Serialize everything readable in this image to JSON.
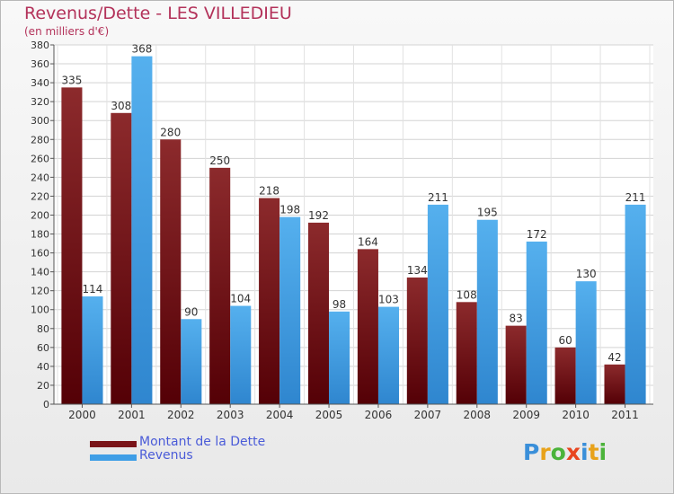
{
  "header": {
    "title": "Revenus/Dette - LES VILLEDIEU",
    "subtitle": "(en milliers d'€)"
  },
  "legend": {
    "items": [
      {
        "label": "Montant de la Dette",
        "color": "#7a1418"
      },
      {
        "label": "Revenus",
        "color": "#3f9ee6"
      }
    ]
  },
  "logo": {
    "letters": [
      "P",
      "r",
      "o",
      "x",
      "i",
      "t",
      "i"
    ],
    "colors": [
      "#3a8fd9",
      "#e8a21a",
      "#4bb33a",
      "#e8451f",
      "#3a8fd9",
      "#e8a21a",
      "#4bb33a"
    ]
  },
  "chart_data": {
    "type": "bar",
    "categories": [
      "2000",
      "2001",
      "2002",
      "2003",
      "2004",
      "2005",
      "2006",
      "2007",
      "2008",
      "2009",
      "2010",
      "2011"
    ],
    "series": [
      {
        "name": "Montant de la Dette",
        "color": "#7a1418",
        "values": [
          335,
          308,
          280,
          250,
          218,
          192,
          164,
          134,
          108,
          83,
          60,
          42
        ]
      },
      {
        "name": "Revenus",
        "color": "#3f9ee6",
        "values": [
          114,
          368,
          90,
          104,
          198,
          98,
          103,
          211,
          195,
          172,
          130,
          211
        ]
      }
    ],
    "ylim": [
      0,
      380
    ],
    "ytick_step": 20,
    "grid": true
  }
}
